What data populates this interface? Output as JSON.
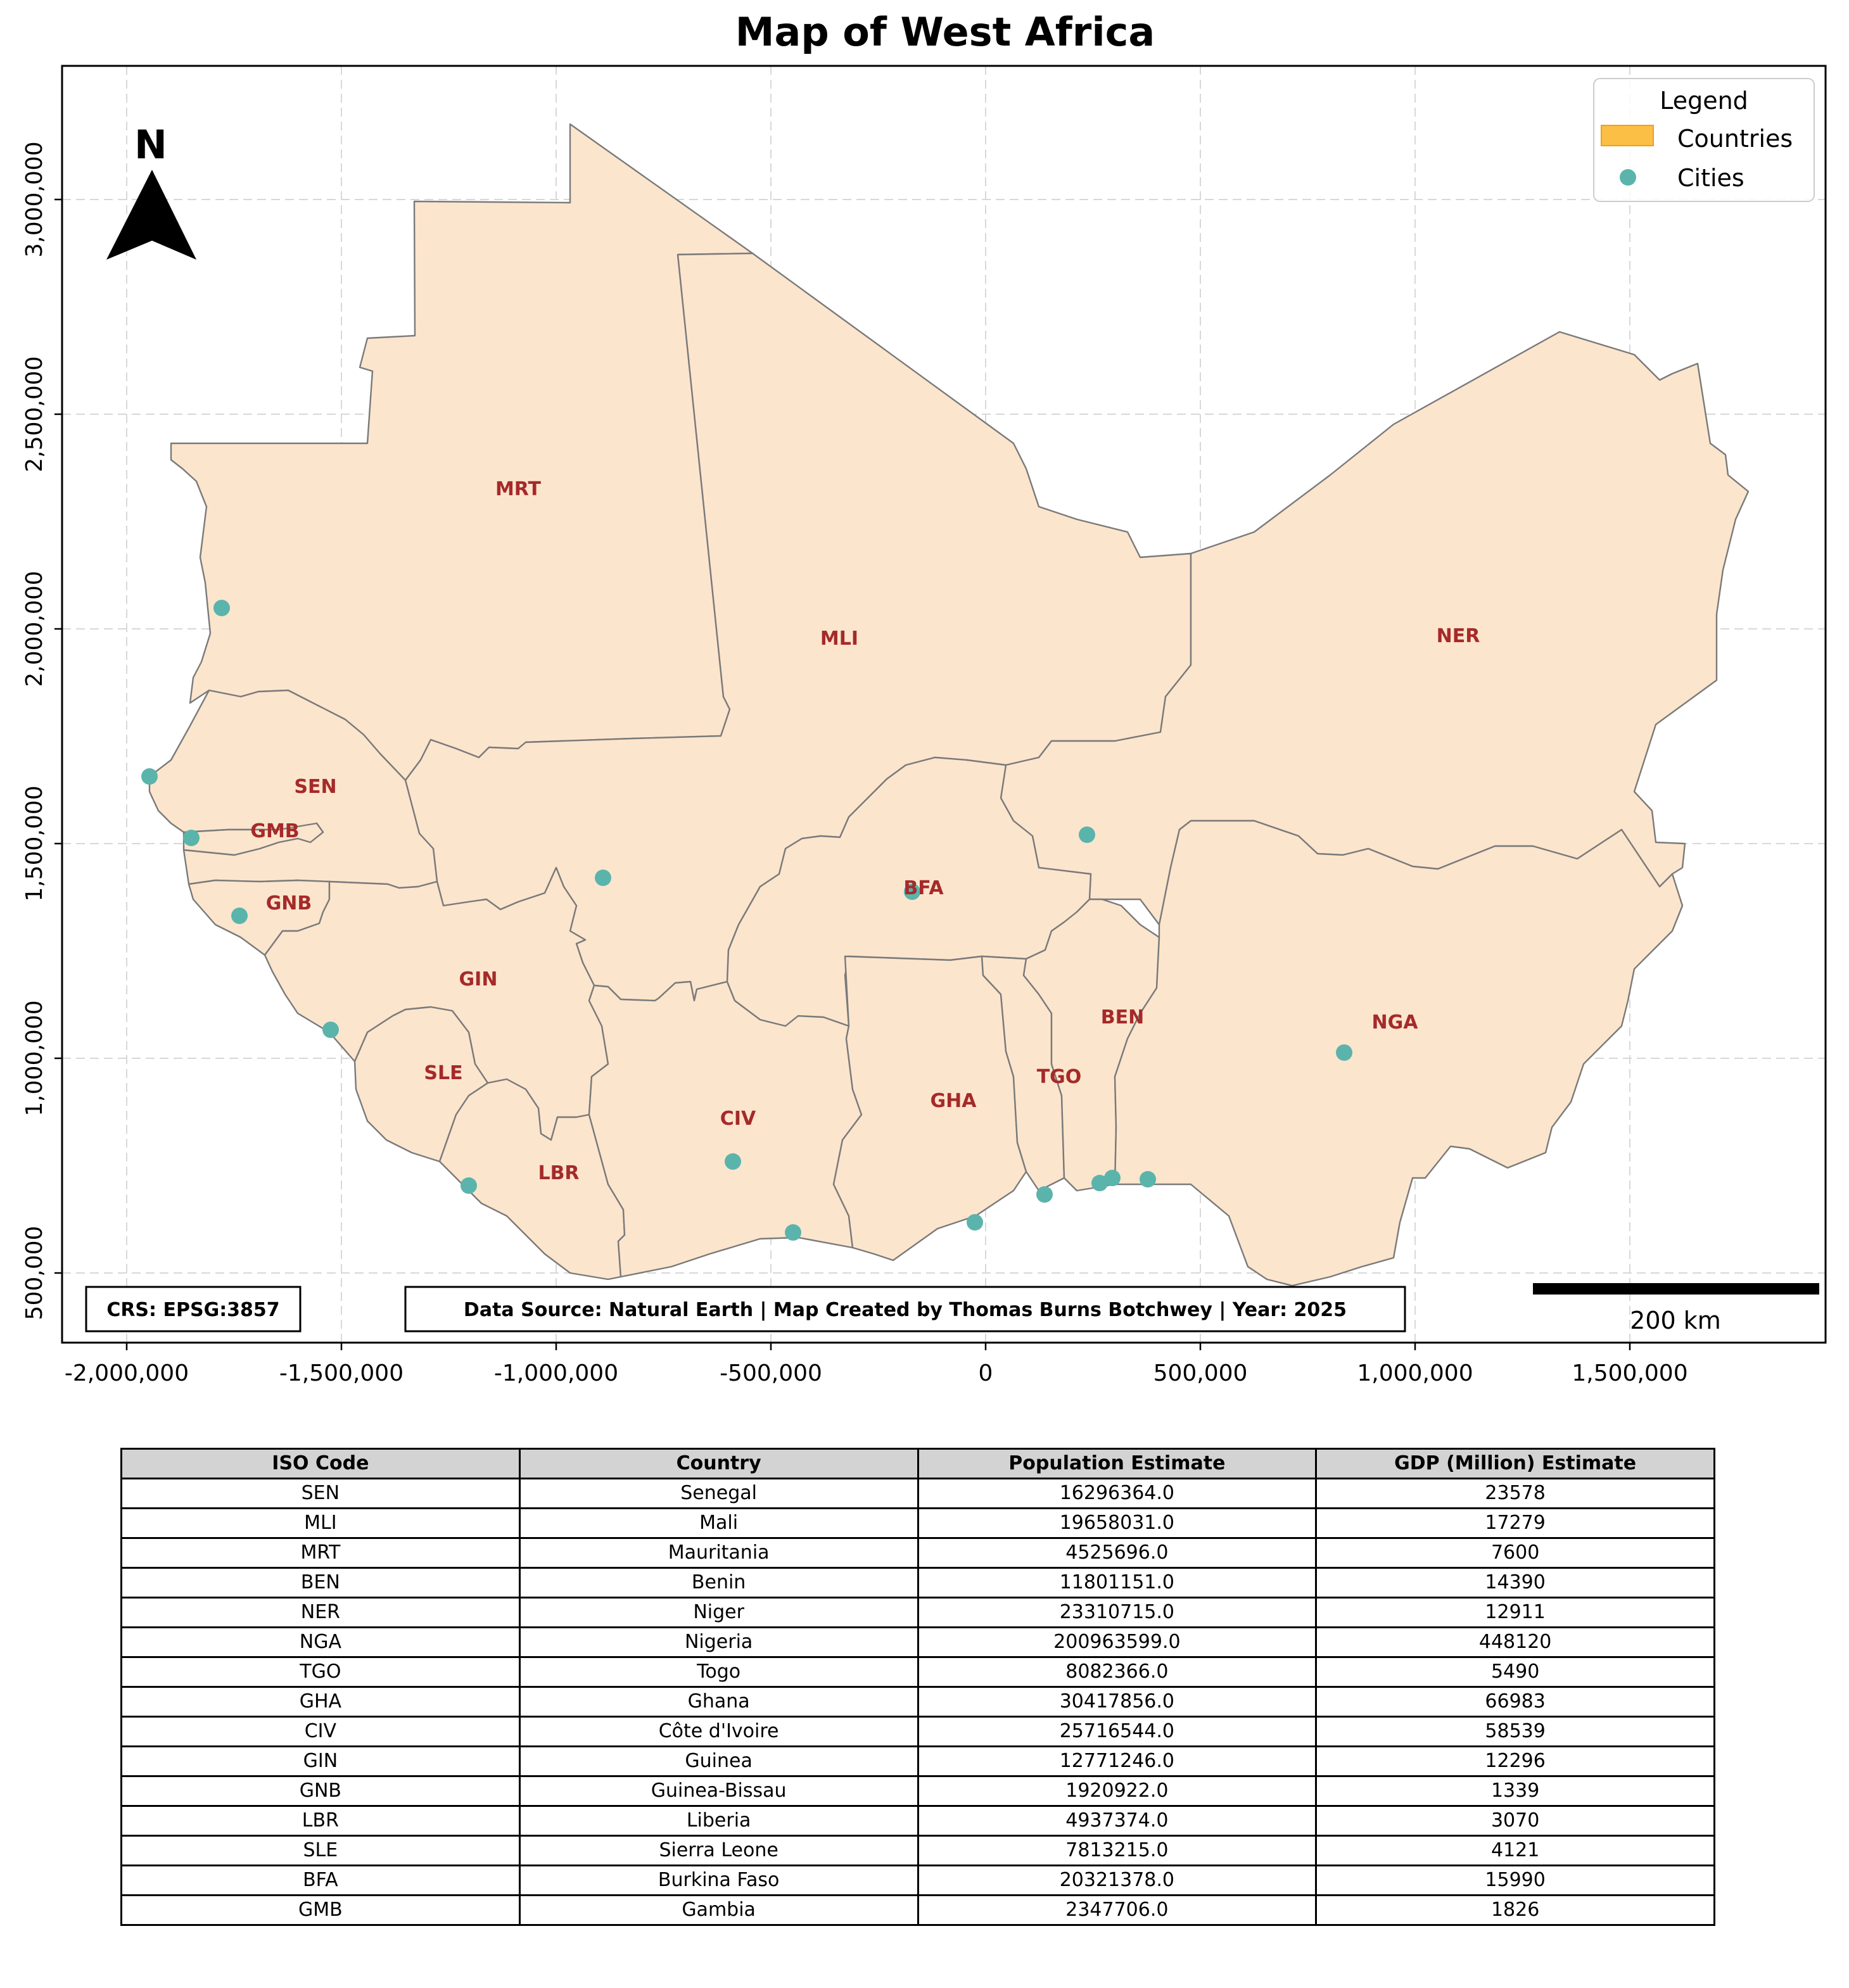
{
  "map": {
    "title": "Map of West Africa",
    "x_ticks": [
      "-2,000,000",
      "-1,500,000",
      "-1,000,000",
      "-500,000",
      "0",
      "500,000",
      "1,000,000",
      "1,500,000"
    ],
    "y_ticks": [
      "500,000",
      "1,000,000",
      "1,500,000",
      "2,000,000",
      "2,500,000",
      "3,000,000"
    ],
    "north_label": "N",
    "legend": {
      "title": "Legend",
      "countries_label": "Countries",
      "cities_label": "Cities",
      "countries_color": "#fbbf45",
      "cities_color": "#5ab4ac"
    },
    "crs_text": "CRS: EPSG:3857",
    "source_text": "Data Source: Natural Earth | Map Created by Thomas Burns Botchwey | Year: 2025",
    "scale_label": "200 km",
    "country_fill": "#fce5cd",
    "label_color": "#a52a2a",
    "country_labels": [
      "MRT",
      "MLI",
      "NER",
      "SEN",
      "GMB",
      "GNB",
      "GIN",
      "BFA",
      "SLE",
      "LBR",
      "CIV",
      "GHA",
      "TGO",
      "BEN",
      "NGA"
    ]
  },
  "table": {
    "headers": [
      "ISO Code",
      "Country",
      "Population Estimate",
      "GDP (Million) Estimate"
    ],
    "rows": [
      [
        "SEN",
        "Senegal",
        "16296364.0",
        "23578"
      ],
      [
        "MLI",
        "Mali",
        "19658031.0",
        "17279"
      ],
      [
        "MRT",
        "Mauritania",
        "4525696.0",
        "7600"
      ],
      [
        "BEN",
        "Benin",
        "11801151.0",
        "14390"
      ],
      [
        "NER",
        "Niger",
        "23310715.0",
        "12911"
      ],
      [
        "NGA",
        "Nigeria",
        "200963599.0",
        "448120"
      ],
      [
        "TGO",
        "Togo",
        "8082366.0",
        "5490"
      ],
      [
        "GHA",
        "Ghana",
        "30417856.0",
        "66983"
      ],
      [
        "CIV",
        "Côte d'Ivoire",
        "25716544.0",
        "58539"
      ],
      [
        "GIN",
        "Guinea",
        "12771246.0",
        "12296"
      ],
      [
        "GNB",
        "Guinea-Bissau",
        "1920922.0",
        "1339"
      ],
      [
        "LBR",
        "Liberia",
        "4937374.0",
        "3070"
      ],
      [
        "SLE",
        "Sierra Leone",
        "7813215.0",
        "4121"
      ],
      [
        "BFA",
        "Burkina Faso",
        "20321378.0",
        "15990"
      ],
      [
        "GMB",
        "Gambia",
        "2347706.0",
        "1826"
      ]
    ]
  }
}
